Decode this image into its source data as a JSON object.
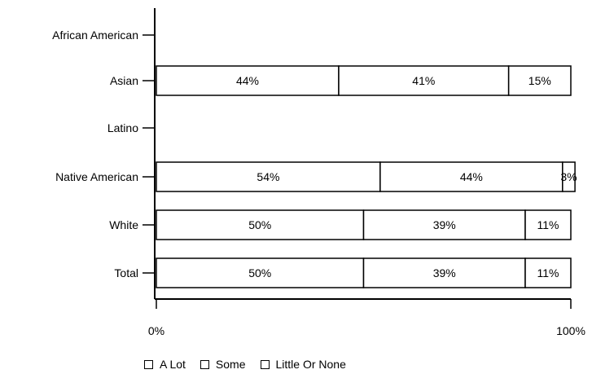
{
  "chart_data": {
    "type": "bar",
    "orientation": "horizontal",
    "stacked": true,
    "categories": [
      "African American",
      "Asian",
      "Latino",
      "Native American",
      "White",
      "Total"
    ],
    "series": [
      {
        "name": "A Lot",
        "values": [
          null,
          44,
          null,
          54,
          50,
          50
        ],
        "labels": [
          "",
          "44%",
          "",
          "54%",
          "50%",
          "50%"
        ],
        "color": "#ffffff"
      },
      {
        "name": "Some",
        "values": [
          null,
          41,
          null,
          44,
          39,
          39
        ],
        "labels": [
          "",
          "41%",
          "",
          "44%",
          "39%",
          "39%"
        ],
        "color": "#ffffff"
      },
      {
        "name": "Little Or None",
        "values": [
          null,
          15,
          null,
          3,
          11,
          11
        ],
        "labels": [
          "",
          "15%",
          "",
          "3%",
          "11%",
          "11%"
        ],
        "color": "#ffffff"
      }
    ],
    "x_ticks": [
      "0%",
      "100%"
    ],
    "xlim": [
      0,
      100
    ],
    "grid": false,
    "legend_position": "bottom"
  }
}
